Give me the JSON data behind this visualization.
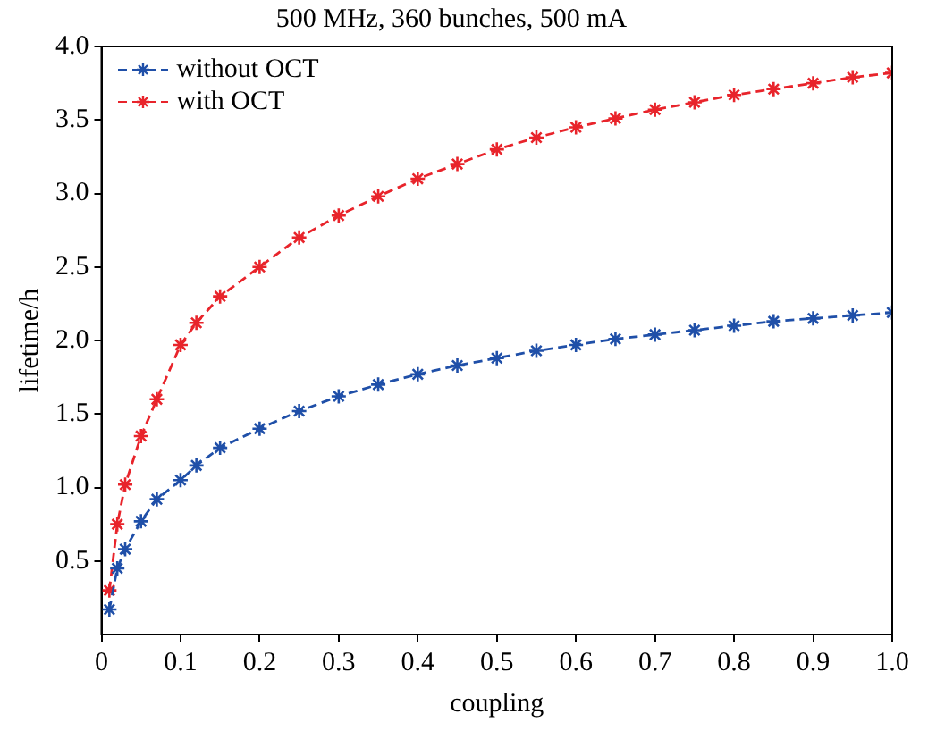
{
  "chart_data": {
    "type": "line",
    "title": "500 MHz, 360 bunches, 500 mA",
    "xlabel": "coupling",
    "ylabel": "lifetime/h",
    "x": [
      0.01,
      0.02,
      0.03,
      0.05,
      0.07,
      0.1,
      0.12,
      0.15,
      0.2,
      0.25,
      0.3,
      0.35,
      0.4,
      0.45,
      0.5,
      0.55,
      0.6,
      0.65,
      0.7,
      0.75,
      0.8,
      0.85,
      0.9,
      0.95,
      1.0
    ],
    "series": [
      {
        "name": "without OCT",
        "color": "#1f4fa8",
        "values": [
          0.17,
          0.45,
          0.58,
          0.77,
          0.92,
          1.05,
          1.15,
          1.27,
          1.4,
          1.52,
          1.62,
          1.7,
          1.77,
          1.83,
          1.88,
          1.93,
          1.97,
          2.01,
          2.04,
          2.07,
          2.1,
          2.13,
          2.15,
          2.17,
          2.19
        ]
      },
      {
        "name": "with OCT",
        "color": "#e8242b",
        "values": [
          0.3,
          0.75,
          1.02,
          1.35,
          1.6,
          1.97,
          2.12,
          2.3,
          2.5,
          2.7,
          2.85,
          2.98,
          3.1,
          3.2,
          3.3,
          3.38,
          3.45,
          3.51,
          3.57,
          3.62,
          3.67,
          3.71,
          3.75,
          3.79,
          3.82
        ]
      }
    ],
    "xlim": [
      0,
      1
    ],
    "xticks": [
      0,
      0.1,
      0.2,
      0.3,
      0.4,
      0.5,
      0.6,
      0.7,
      0.8,
      0.9,
      {
        "value": 1,
        "label": "1.0"
      }
    ],
    "ylim": [
      0,
      4
    ],
    "yticks": [
      0.5,
      {
        "value": 1,
        "label": "1.0"
      },
      1.5,
      {
        "value": 2,
        "label": "2.0"
      },
      2.5,
      {
        "value": 3,
        "label": "3.0"
      },
      3.5,
      {
        "value": 4,
        "label": "4.0"
      }
    ],
    "grid": false,
    "legend": "top left",
    "marker": "cross",
    "line_style": "dashed"
  }
}
